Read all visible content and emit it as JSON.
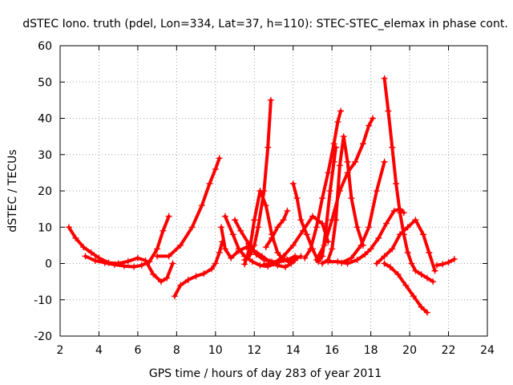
{
  "chart_data": {
    "type": "scatter",
    "title": "dSTEC Iono. truth (pdel, Lon=334, Lat=37, h=110): STEC-STEC_elemax in phase cont.",
    "xlabel": "GPS time / hours of day 283 of year 2011",
    "ylabel": "dSTEC  / TECUs",
    "xlim": [
      2,
      24
    ],
    "ylim": [
      -20,
      60
    ],
    "x_ticks": [
      2,
      4,
      6,
      8,
      10,
      12,
      14,
      16,
      18,
      20,
      22,
      24
    ],
    "y_ticks": [
      -20,
      -10,
      0,
      10,
      20,
      30,
      40,
      50,
      60
    ],
    "grid": true,
    "legend": "none",
    "color": "#ff0000",
    "marker": "plus",
    "series": [
      {
        "x": [
          2.45,
          2.8,
          3.2,
          3.6,
          4.0,
          4.5,
          5.0,
          5.5,
          6.0,
          6.4,
          6.8,
          7.2,
          7.5,
          7.8
        ],
        "y": [
          10,
          7,
          4.5,
          3,
          1.5,
          0.2,
          0,
          0.6,
          1.5,
          0.8,
          -3,
          -5,
          -4,
          0
        ]
      },
      {
        "x": [
          3.3,
          3.8,
          4.3,
          4.8,
          5.3,
          5.8,
          6.2,
          6.6,
          7.0,
          7.3,
          7.6
        ],
        "y": [
          2,
          0.8,
          0.2,
          -0.3,
          -0.7,
          -0.9,
          -0.5,
          0.5,
          4,
          9,
          13
        ]
      },
      {
        "x": [
          7.9,
          8.2,
          8.6,
          9.0,
          9.4,
          9.8,
          10.0,
          10.2,
          10.35
        ],
        "y": [
          -9,
          -6,
          -4.5,
          -3.5,
          -2.8,
          -1.5,
          0,
          3,
          6
        ]
      },
      {
        "x": [
          7.0,
          7.6,
          8.2,
          8.8,
          9.3,
          9.7,
          10.0,
          10.2
        ],
        "y": [
          2,
          2,
          5,
          10,
          16,
          22,
          26,
          29
        ]
      },
      {
        "x": [
          10.3,
          10.5,
          10.8,
          11.2,
          11.6,
          12.0,
          12.4,
          12.8,
          13.2,
          13.6,
          13.9,
          14.1
        ],
        "y": [
          10,
          4,
          1.5,
          3.5,
          4.5,
          3.5,
          2,
          0.5,
          -0.5,
          -1,
          0,
          1
        ]
      },
      {
        "x": [
          10.5,
          10.9,
          11.2,
          11.5,
          11.9,
          12.3,
          12.7,
          13.1,
          13.5
        ],
        "y": [
          13,
          8,
          4,
          2,
          0.5,
          -0.5,
          -0.8,
          0,
          1.5
        ]
      },
      {
        "x": [
          11.0,
          11.3,
          11.7,
          12.1,
          12.5,
          12.9,
          13.3,
          13.7,
          14.1
        ],
        "y": [
          12,
          9,
          5.5,
          2.5,
          1,
          0.5,
          0.5,
          1,
          2
        ]
      },
      {
        "x": [
          11.5,
          11.8,
          12.0,
          12.2,
          12.5,
          12.7,
          12.85
        ],
        "y": [
          1,
          2.5,
          5,
          10,
          20,
          32,
          45
        ]
      },
      {
        "x": [
          11.5,
          11.8,
          12.0,
          12.3,
          12.6,
          12.9,
          13.2,
          13.5,
          13.8,
          14.0,
          14.2,
          14.4
        ],
        "y": [
          -0.2,
          5,
          12,
          20,
          16,
          8,
          3,
          1,
          0.5,
          1,
          1.5,
          2
        ]
      },
      {
        "x": [
          12.6,
          12.9,
          13.2,
          13.5,
          13.7
        ],
        "y": [
          4.5,
          7,
          10,
          12,
          14.5
        ]
      },
      {
        "x": [
          14.0,
          14.2,
          14.4,
          14.7,
          15.0,
          15.3,
          15.5,
          15.7,
          15.9,
          16.1,
          16.2
        ],
        "y": [
          22,
          18,
          12,
          8,
          4,
          0.5,
          2,
          10,
          20,
          28,
          32
        ]
      },
      {
        "x": [
          12.5,
          13.0,
          13.5,
          14.0,
          14.5,
          15.0,
          15.5,
          15.8
        ],
        "y": [
          -0.3,
          0,
          2,
          5,
          9,
          13,
          11,
          6
        ]
      },
      {
        "x": [
          14.6,
          14.9,
          15.2,
          15.5,
          15.8,
          16.1,
          16.3,
          16.45
        ],
        "y": [
          1.5,
          4,
          10,
          18,
          25,
          33,
          39,
          42
        ]
      },
      {
        "x": [
          15.5,
          15.8,
          16.0,
          16.2,
          16.4,
          16.6,
          16.8,
          17.0,
          17.3,
          17.6
        ],
        "y": [
          0,
          1,
          4,
          12,
          27,
          35,
          28,
          18,
          10,
          5
        ]
      },
      {
        "x": [
          15.2,
          15.6,
          16.0,
          16.4,
          16.8,
          17.2,
          17.6,
          17.9,
          18.1
        ],
        "y": [
          1,
          5,
          12,
          20,
          25,
          28,
          33,
          38,
          40
        ]
      },
      {
        "x": [
          15.8,
          16.3,
          16.8,
          17.3,
          17.7,
          18.0,
          18.4,
          18.8,
          19.2,
          19.5,
          19.7
        ],
        "y": [
          0.5,
          0.5,
          0,
          1,
          2.5,
          4,
          7,
          11,
          14.5,
          15,
          14
        ]
      },
      {
        "x": [
          16.5,
          17.0,
          17.5,
          17.9,
          18.3,
          18.7
        ],
        "y": [
          0.2,
          1.5,
          5,
          10,
          20,
          28
        ]
      },
      {
        "x": [
          18.3,
          18.7,
          19.1,
          19.5,
          19.9,
          20.3,
          20.7,
          21.0,
          21.3
        ],
        "y": [
          0,
          2,
          4,
          8,
          10,
          12,
          8,
          3,
          -2
        ]
      },
      {
        "x": [
          18.7,
          18.9,
          19.1,
          19.3,
          19.5,
          19.7,
          19.9,
          20.1,
          20.3,
          20.6,
          20.9,
          21.2
        ],
        "y": [
          51,
          42,
          32,
          22,
          14,
          8,
          3,
          0,
          -2,
          -3,
          -4,
          -5
        ]
      },
      {
        "x": [
          18.7,
          19.0,
          19.4,
          19.8,
          20.2,
          20.6,
          20.9
        ],
        "y": [
          0,
          -1,
          -3,
          -6,
          -9,
          -12,
          -13.5
        ]
      },
      {
        "x": [
          21.4,
          21.7,
          22.0,
          22.3
        ],
        "y": [
          -0.5,
          -0.2,
          0.3,
          1.2
        ]
      }
    ]
  }
}
